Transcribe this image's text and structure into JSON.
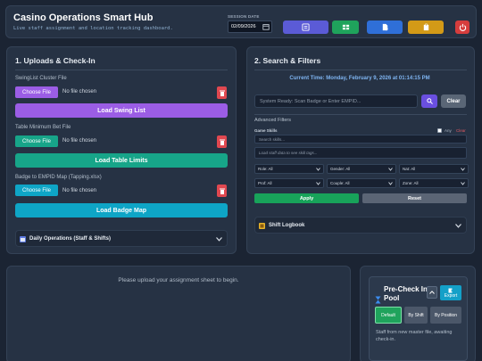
{
  "header": {
    "title": "Casino Operations Smart Hub",
    "subtitle": "Live staff assignment and location tracking dashboard.",
    "session_label": "SESSION DATE",
    "session_date": "02/09/2026",
    "buttons": [
      {
        "icon": "list-icon",
        "color": "#5b5bd6"
      },
      {
        "icon": "table-icon",
        "color": "#1fa35c"
      },
      {
        "icon": "report-icon",
        "color": "#2f6fd8"
      },
      {
        "icon": "clipboard-icon",
        "color": "#d39a17"
      },
      {
        "icon": "power-icon",
        "color": "#d63d3d"
      }
    ]
  },
  "uploads": {
    "title": "1. Uploads & Check-In",
    "sections": [
      {
        "label": "SwingList Cluster File",
        "choose": "Choose File",
        "status": "No file chosen",
        "action": "Load Swing List",
        "choose_color": "#9b5de5",
        "action_color": "#9b5de5"
      },
      {
        "label": "Table Minimum Bet File",
        "choose": "Choose File",
        "status": "No file chosen",
        "action": "Load Table Limits",
        "choose_color": "#17a589",
        "action_color": "#17a589"
      },
      {
        "label": "Badge to EMPID Map (Tapping.xlsx)",
        "choose": "Choose File",
        "status": "No file chosen",
        "action": "Load Badge Map",
        "choose_color": "#0ea5c6",
        "action_color": "#0ea5c6"
      }
    ],
    "daily_ops": "Daily Operations (Staff & Shifts)"
  },
  "search": {
    "title": "2. Search & Filters",
    "current_time": "Current Time: Monday, February 9, 2026 at 01:14:15 PM",
    "placeholder": "System Ready: Scan Badge or Enter EMPID...",
    "clear_label": "Clear",
    "advanced_label": "Advanced Filters",
    "game_skills_label": "Game Skills",
    "any_label": "Any",
    "clear_link": "Clear",
    "skills_placeholder": "Search skills...",
    "skills_hint": "Load staff data to see skill tags...",
    "selects": [
      "Role: All",
      "Gender: All",
      "Nat: All",
      "Prof: All",
      "Couple: All",
      "Zone: All"
    ],
    "apply_label": "Apply",
    "reset_label": "Reset",
    "logbook_label": "Shift Logbook"
  },
  "main": {
    "message": "Please upload your assignment sheet to begin."
  },
  "pool": {
    "title": "Pre-Check In Pool",
    "export_label": "Export",
    "segments": [
      "Default",
      "By Shift",
      "By Position"
    ],
    "note": "Staff from new master file, awaiting check-in."
  }
}
